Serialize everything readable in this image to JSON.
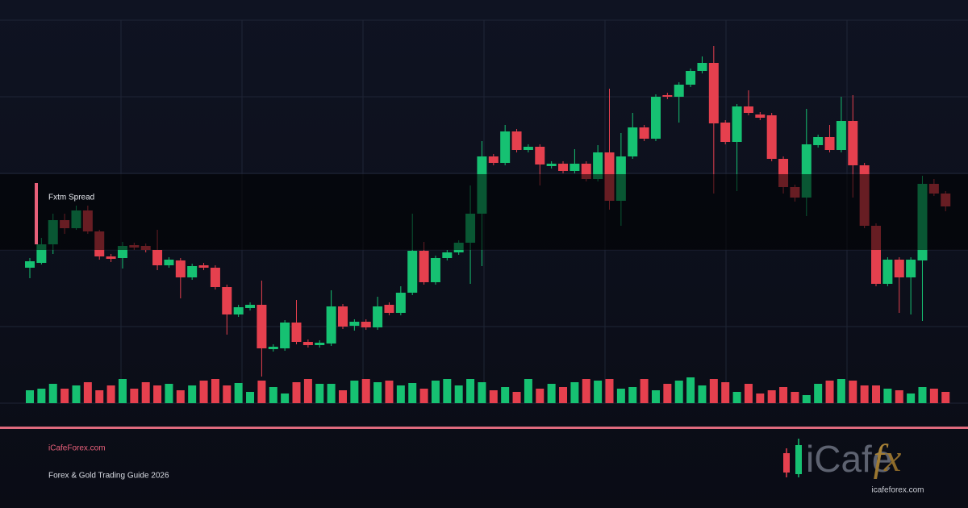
{
  "chart_data": {
    "type": "candlestick",
    "annotation": "Fxtm Spread",
    "footer": {
      "site": "iCafeForex.com",
      "subtitle": "Forex & Gold Trading Guide 2026"
    },
    "logo": {
      "brand": "iCafe",
      "mark": "fx",
      "url": "icafeforex.com"
    },
    "up_color": "#16c172",
    "down_color": "#e5404e",
    "ylim": [
      0,
      500
    ],
    "y2lim": [
      0,
      500
    ],
    "open": [
      168,
      174,
      197,
      227,
      217,
      239,
      213,
      182,
      180,
      196,
      195,
      190,
      171,
      177,
      156,
      171,
      168,
      144,
      110,
      118,
      122,
      67,
      68,
      100,
      76,
      72,
      74,
      120,
      96,
      101,
      94,
      122,
      112,
      137,
      189,
      150,
      180,
      187,
      199,
      235,
      306,
      298,
      337,
      314,
      318,
      294,
      297,
      288,
      297,
      278,
      311,
      251,
      306,
      342,
      328,
      382,
      380,
      395,
      412,
      422,
      348,
      324,
      368,
      358,
      357,
      303,
      268,
      255,
      320,
      330,
      314,
      350,
      295,
      220,
      148,
      178,
      156,
      177,
      272,
      260
    ],
    "high": [
      180,
      205,
      235,
      235,
      245,
      245,
      215,
      185,
      200,
      199,
      198,
      215,
      181,
      180,
      173,
      174,
      171,
      147,
      122,
      125,
      152,
      73,
      103,
      128,
      79,
      78,
      140,
      123,
      104,
      104,
      132,
      125,
      145,
      235,
      200,
      183,
      190,
      202,
      270,
      325,
      309,
      345,
      340,
      321,
      321,
      300,
      300,
      315,
      300,
      320,
      390,
      335,
      360,
      345,
      383,
      385,
      398,
      415,
      430,
      443,
      351,
      371,
      388,
      361,
      360,
      306,
      271,
      365,
      333,
      345,
      380,
      382,
      298,
      223,
      181,
      181,
      181,
      282,
      278,
      263
    ],
    "low": [
      155,
      172,
      185,
      210,
      215,
      210,
      178,
      175,
      167,
      190,
      187,
      165,
      168,
      130,
      153,
      165,
      141,
      85,
      107,
      115,
      33,
      64,
      65,
      73,
      69,
      69,
      71,
      92,
      90,
      91,
      91,
      109,
      109,
      134,
      147,
      147,
      177,
      184,
      148,
      170,
      295,
      295,
      311,
      311,
      270,
      291,
      285,
      285,
      275,
      275,
      240,
      220,
      303,
      325,
      325,
      377,
      348,
      392,
      409,
      260,
      321,
      263,
      357,
      351,
      300,
      260,
      250,
      232,
      317,
      311,
      311,
      255,
      217,
      145,
      145,
      112,
      110,
      102,
      257,
      238
    ],
    "close": [
      176,
      197,
      227,
      217,
      239,
      213,
      182,
      179,
      195,
      193,
      190,
      171,
      178,
      156,
      170,
      168,
      144,
      110,
      119,
      122,
      68,
      70,
      100,
      76,
      72,
      75,
      120,
      95,
      101,
      94,
      120,
      112,
      137,
      189,
      150,
      180,
      187,
      199,
      235,
      306,
      298,
      337,
      314,
      318,
      296,
      297,
      288,
      297,
      278,
      311,
      251,
      306,
      342,
      328,
      380,
      380,
      395,
      412,
      422,
      347,
      324,
      368,
      360,
      354,
      303,
      268,
      255,
      321,
      330,
      314,
      350,
      295,
      220,
      148,
      178,
      156,
      178,
      272,
      260,
      244
    ],
    "volume": [
      16,
      18,
      24,
      18,
      22,
      26,
      16,
      22,
      30,
      18,
      26,
      22,
      24,
      16,
      22,
      28,
      30,
      22,
      25,
      14,
      28,
      20,
      12,
      26,
      30,
      24,
      24,
      16,
      28,
      30,
      26,
      28,
      22,
      25,
      18,
      28,
      30,
      22,
      30,
      26,
      16,
      20,
      14,
      30,
      18,
      24,
      20,
      26,
      30,
      28,
      30,
      18,
      20,
      30,
      16,
      24,
      28,
      32,
      22,
      30,
      26,
      14,
      24,
      12,
      16,
      20,
      14,
      10,
      24,
      28,
      30,
      28,
      22,
      22,
      18,
      16,
      12,
      20,
      18,
      14
    ]
  }
}
